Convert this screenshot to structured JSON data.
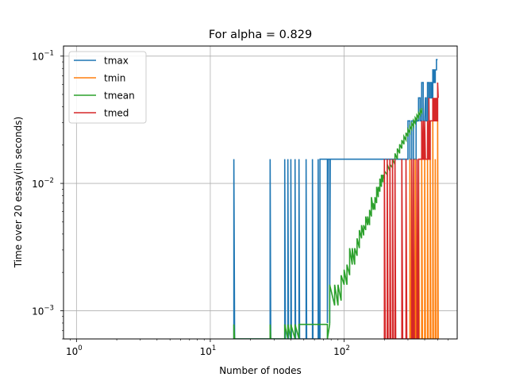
{
  "chart_data": {
    "type": "line",
    "title": "For alpha = 0.829",
    "xlabel": "Number of nodes",
    "ylabel": "Time over 20 essay(in seconds)",
    "xscale": "log",
    "yscale": "log",
    "xlim": [
      0.8,
      700
    ],
    "ylim": [
      0.0006,
      0.12
    ],
    "grid": true,
    "legend_position": "top-left",
    "x_ticks": [
      {
        "value": 1,
        "base": "10",
        "exp": "0"
      },
      {
        "value": 10,
        "base": "10",
        "exp": "1"
      },
      {
        "value": 100,
        "base": "10",
        "exp": "2"
      }
    ],
    "y_ticks": [
      {
        "value": 0.001,
        "base": "10",
        "exp": "−3"
      },
      {
        "value": 0.01,
        "base": "10",
        "exp": "−2"
      },
      {
        "value": 0.1,
        "base": "10",
        "exp": "−1"
      }
    ],
    "series": [
      {
        "name": "tmax",
        "color": "#1f77b4",
        "x": [
          15,
          15,
          15.2,
          28,
          28,
          28.3,
          36,
          36,
          36.4,
          38,
          38,
          38.4,
          40,
          40,
          40.4,
          43,
          43,
          43.4,
          46,
          46,
          46.5,
          52,
          52,
          52.5,
          58,
          58,
          58.5,
          64,
          64,
          64.6,
          66,
          66,
          75,
          75,
          75.8,
          78,
          78,
          78.8,
          80,
          80,
          200,
          210,
          220,
          230,
          240,
          250,
          270,
          290,
          300,
          300,
          310,
          310,
          320,
          320,
          330,
          330,
          345,
          345,
          350,
          355,
          360,
          360,
          370,
          370,
          380,
          380,
          390,
          390,
          400,
          405,
          410,
          410,
          420,
          420,
          430,
          430,
          440,
          440,
          450,
          450,
          460,
          460,
          470,
          470,
          480,
          480,
          490,
          490,
          500
        ],
        "y": [
          0.0006,
          0.0155,
          0.0006,
          0.0006,
          0.0155,
          0.0006,
          0.0006,
          0.0155,
          0.0006,
          0.0006,
          0.0155,
          0.0006,
          0.0006,
          0.0155,
          0.0006,
          0.0006,
          0.0155,
          0.0006,
          0.0006,
          0.0155,
          0.0006,
          0.0006,
          0.0155,
          0.0006,
          0.0006,
          0.0155,
          0.0006,
          0.0006,
          0.0155,
          0.0006,
          0.0006,
          0.0155,
          0.0155,
          0.0008,
          0.0155,
          0.0155,
          0.0008,
          0.0155,
          0.0155,
          0.0155,
          0.0155,
          0.0155,
          0.0155,
          0.0155,
          0.0155,
          0.0155,
          0.0155,
          0.0155,
          0.0155,
          0.031,
          0.031,
          0.0155,
          0.0155,
          0.031,
          0.031,
          0.0155,
          0.0155,
          0.031,
          0.031,
          0.031,
          0.031,
          0.047,
          0.047,
          0.031,
          0.031,
          0.062,
          0.062,
          0.031,
          0.031,
          0.047,
          0.047,
          0.031,
          0.031,
          0.062,
          0.062,
          0.047,
          0.047,
          0.062,
          0.062,
          0.047,
          0.047,
          0.078,
          0.078,
          0.062,
          0.062,
          0.078,
          0.078,
          0.094,
          0.094
        ]
      },
      {
        "name": "tmin",
        "color": "#ff7f0e",
        "x": [
          310,
          310,
          314,
          320,
          320,
          324,
          340,
          340,
          345,
          360,
          360,
          365,
          380,
          380,
          385,
          400,
          400,
          405,
          420,
          420,
          425,
          440,
          440,
          445,
          460,
          460,
          465,
          480,
          480,
          485,
          500,
          500,
          505
        ],
        "y": [
          0.0006,
          0.0155,
          0.0006,
          0.0006,
          0.0155,
          0.0006,
          0.0006,
          0.0155,
          0.0006,
          0.0006,
          0.0155,
          0.0006,
          0.0006,
          0.0155,
          0.0006,
          0.0006,
          0.0155,
          0.0006,
          0.0006,
          0.0155,
          0.0006,
          0.0006,
          0.0155,
          0.0006,
          0.0006,
          0.031,
          0.0006,
          0.0006,
          0.0155,
          0.0006,
          0.0006,
          0.031,
          0.0006
        ]
      },
      {
        "name": "tmean",
        "color": "#2ca02c",
        "x": [
          15,
          15,
          15.2,
          28,
          28,
          28.3,
          36,
          36,
          38,
          38,
          40,
          40,
          43,
          43,
          46,
          46,
          52,
          52,
          58,
          58,
          64,
          64,
          66,
          66,
          75,
          75,
          78,
          78,
          85,
          85,
          90,
          90,
          95,
          95,
          100,
          100,
          105,
          105,
          110,
          110,
          115,
          115,
          120,
          120,
          125,
          125,
          130,
          130,
          135,
          135,
          140,
          140,
          145,
          145,
          150,
          150,
          155,
          155,
          160,
          160,
          165,
          165,
          170,
          170,
          175,
          175,
          180,
          180,
          185,
          185,
          190,
          190,
          195,
          195,
          200,
          200,
          210,
          210,
          220,
          220,
          230,
          230,
          240,
          240,
          250,
          250,
          260,
          260,
          270,
          270,
          280,
          280,
          290,
          290,
          300,
          300,
          310,
          310,
          320,
          320,
          330,
          330,
          340,
          340,
          350,
          350,
          360,
          360,
          370,
          370,
          380,
          380
        ],
        "y": [
          0.0006,
          0.00078,
          0.0006,
          0.0006,
          0.00078,
          0.0006,
          0.0006,
          0.00078,
          0.0006,
          0.00078,
          0.0006,
          0.00078,
          0.0006,
          0.00078,
          0.0006,
          0.00078,
          0.00078,
          0.00078,
          0.00078,
          0.00078,
          0.00078,
          0.00078,
          0.00078,
          0.00078,
          0.00078,
          0.0006,
          0.00078,
          0.0016,
          0.0011,
          0.0016,
          0.0011,
          0.0016,
          0.0012,
          0.0019,
          0.0016,
          0.0021,
          0.0016,
          0.0023,
          0.0019,
          0.0031,
          0.0023,
          0.0031,
          0.0023,
          0.0031,
          0.0027,
          0.0037,
          0.0031,
          0.0043,
          0.0037,
          0.0047,
          0.0039,
          0.0047,
          0.0043,
          0.0055,
          0.0047,
          0.0055,
          0.0047,
          0.0062,
          0.0055,
          0.0078,
          0.0062,
          0.007,
          0.0062,
          0.0078,
          0.007,
          0.0094,
          0.0078,
          0.0094,
          0.0086,
          0.0109,
          0.0094,
          0.0117,
          0.0102,
          0.0117,
          0.0109,
          0.0125,
          0.0117,
          0.0141,
          0.0125,
          0.0141,
          0.0133,
          0.0155,
          0.0141,
          0.0172,
          0.0155,
          0.0188,
          0.0172,
          0.0203,
          0.0188,
          0.0219,
          0.0203,
          0.0234,
          0.0219,
          0.025,
          0.0234,
          0.0266,
          0.025,
          0.0281,
          0.0266,
          0.0297,
          0.0281,
          0.0313,
          0.0297,
          0.0328,
          0.0313,
          0.0344,
          0.0328,
          0.0359,
          0.0344,
          0.0375,
          0.0359,
          0.0391
        ]
      },
      {
        "name": "tmed",
        "color": "#d62728",
        "x": [
          200,
          200,
          203,
          210,
          210,
          213,
          220,
          220,
          223,
          230,
          230,
          233,
          240,
          240,
          243,
          270,
          270,
          274,
          290,
          290,
          294,
          320,
          320,
          325,
          330,
          330,
          335,
          350,
          350,
          355,
          360,
          360,
          365,
          380,
          380,
          385,
          390,
          390,
          395,
          400,
          400,
          405,
          420,
          420,
          425,
          430,
          430,
          435,
          440,
          440,
          445,
          460,
          460,
          465,
          470,
          470,
          475,
          480,
          480,
          485,
          490,
          490,
          495,
          500,
          500,
          505
        ],
        "y": [
          0.0006,
          0.0155,
          0.0006,
          0.0006,
          0.0155,
          0.0006,
          0.0006,
          0.0155,
          0.0006,
          0.0006,
          0.0155,
          0.0006,
          0.0006,
          0.0155,
          0.0006,
          0.0006,
          0.0155,
          0.0006,
          0.0006,
          0.0155,
          0.0006,
          0.0006,
          0.0155,
          0.0006,
          0.0006,
          0.0155,
          0.0006,
          0.0006,
          0.0155,
          0.0006,
          0.0006,
          0.0155,
          0.0155,
          0.0155,
          0.031,
          0.0155,
          0.0155,
          0.031,
          0.0155,
          0.0155,
          0.031,
          0.0155,
          0.0155,
          0.031,
          0.0155,
          0.0155,
          0.047,
          0.0155,
          0.0155,
          0.031,
          0.031,
          0.031,
          0.047,
          0.031,
          0.031,
          0.047,
          0.031,
          0.031,
          0.047,
          0.031,
          0.031,
          0.047,
          0.031,
          0.031,
          0.062,
          0.047
        ]
      }
    ]
  }
}
